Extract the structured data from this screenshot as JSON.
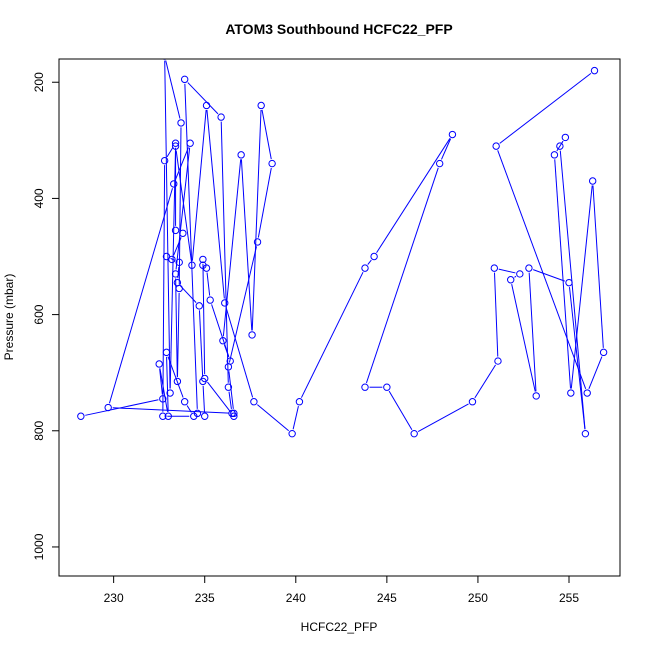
{
  "chart_data": {
    "type": "line",
    "title": "ATOM3 Southbound HCFC22_PFP",
    "xlabel": "HCFC22_PFP",
    "ylabel": "Pressure (mbar)",
    "xlim": [
      227,
      257.8
    ],
    "ylim": [
      1050,
      160
    ],
    "y_reversed": true,
    "x_ticks": [
      230,
      235,
      240,
      245,
      250,
      255
    ],
    "y_ticks": [
      200,
      400,
      600,
      800,
      1000
    ],
    "grid": false,
    "legend": "none",
    "marker": "open-circle",
    "colors": {
      "series": "#0000ff",
      "axis": "#000000",
      "background": "#ffffff"
    },
    "series": [
      {
        "x": [
          228.2,
          232.7,
          232.5,
          233.0,
          232.9,
          233.9,
          234.4,
          232.7,
          232.8,
          233.4,
          233.4,
          233.8,
          233.2,
          232.9,
          233.6,
          233.5,
          234.7,
          234.9,
          235.0,
          234.6,
          233.9,
          235.9,
          236.3,
          236.5,
          236.6,
          235.0,
          234.9,
          234.9,
          235.1,
          235.3,
          236.4,
          236.0,
          237.0,
          237.6,
          238.1,
          238.7,
          237.9,
          236.3,
          236.6,
          229.7,
          233.3,
          234.2,
          233.4,
          233.5,
          233.6,
          233.7,
          232.8,
          233.1,
          233.4,
          234.3,
          235.1,
          236.1,
          237.7,
          239.8,
          240.2,
          243.8,
          244.3,
          248.6,
          247.9,
          243.8,
          245.0,
          246.5,
          249.7,
          251.1,
          250.9,
          252.3,
          251.8,
          253.2,
          252.8,
          255.0,
          255.9,
          254.5,
          254.8,
          254.2,
          255.1,
          256.3,
          256.9,
          256.0,
          251.0,
          256.4
        ],
        "y": [
          775,
          745,
          685,
          775,
          665,
          750,
          775,
          775,
          335,
          305,
          455,
          460,
          505,
          500,
          510,
          545,
          585,
          715,
          775,
          770,
          195,
          260,
          725,
          770,
          775,
          710,
          505,
          515,
          520,
          575,
          680,
          645,
          325,
          635,
          240,
          340,
          475,
          690,
          770,
          760,
          375,
          305,
          530,
          715,
          555,
          270,
          155,
          735,
          310,
          515,
          240,
          580,
          750,
          805,
          750,
          520,
          500,
          290,
          340,
          725,
          725,
          805,
          750,
          680,
          520,
          530,
          540,
          740,
          520,
          545,
          805,
          310,
          295,
          325,
          735,
          370,
          665,
          735,
          310,
          180
        ]
      }
    ]
  }
}
